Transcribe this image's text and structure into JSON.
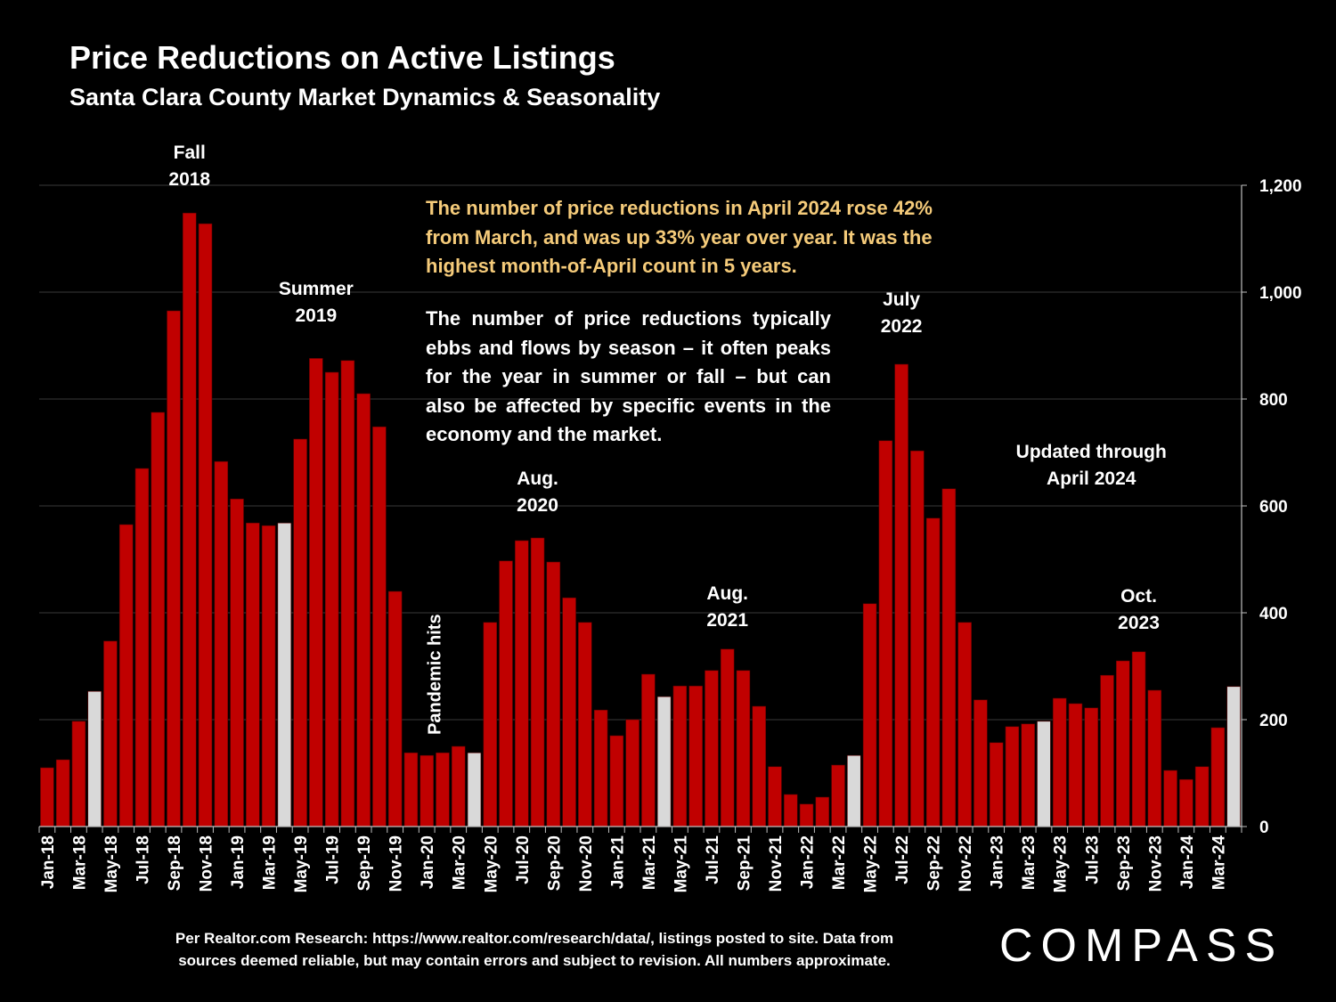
{
  "title": "Price Reductions on Active Listings",
  "subtitle": "Santa Clara County Market Dynamics & Seasonality",
  "notes": {
    "highlight": "The number of price reductions in April 2024 rose 42% from March, and was up 33% year over year. It was the highest month-of-April count in 5 years.",
    "body": "The number of price reductions typically ebbs and flows by season – it often peaks for the year in summer or fall – but can also be affected by specific events in the economy and the market."
  },
  "footer": {
    "line1": "Per Realtor.com Research:  https://www.realtor.com/research/data/, listings posted to site. Data from",
    "line2": "sources deemed reliable, but may contain errors and subject to revision. All numbers approximate."
  },
  "logo": "COMPASS",
  "colors": {
    "bar": "#c00000",
    "april_bar": "#d9d9d9",
    "highlight_text": "#f5cb7a",
    "background": "#000000"
  },
  "chart_data": {
    "type": "bar",
    "ylim": [
      0,
      1200
    ],
    "yticks": [
      "0",
      "200",
      "400",
      "600",
      "800",
      "1,000",
      "1,200"
    ],
    "ytick_values": [
      0,
      200,
      400,
      600,
      800,
      1000,
      1200
    ],
    "y_axis_side": "right",
    "categories": [
      "Jan-18",
      "Feb-18",
      "Mar-18",
      "Apr-18",
      "May-18",
      "Jun-18",
      "Jul-18",
      "Aug-18",
      "Sep-18",
      "Oct-18",
      "Nov-18",
      "Dec-18",
      "Jan-19",
      "Feb-19",
      "Mar-19",
      "Apr-19",
      "May-19",
      "Jun-19",
      "Jul-19",
      "Aug-19",
      "Sep-19",
      "Oct-19",
      "Nov-19",
      "Dec-19",
      "Jan-20",
      "Feb-20",
      "Mar-20",
      "Apr-20",
      "May-20",
      "Jun-20",
      "Jul-20",
      "Aug-20",
      "Sep-20",
      "Oct-20",
      "Nov-20",
      "Dec-20",
      "Jan-21",
      "Feb-21",
      "Mar-21",
      "Apr-21",
      "May-21",
      "Jun-21",
      "Jul-21",
      "Aug-21",
      "Sep-21",
      "Oct-21",
      "Nov-21",
      "Dec-21",
      "Jan-22",
      "Feb-22",
      "Mar-22",
      "Apr-22",
      "May-22",
      "Jun-22",
      "Jul-22",
      "Aug-22",
      "Sep-22",
      "Oct-22",
      "Nov-22",
      "Dec-22",
      "Jan-23",
      "Feb-23",
      "Mar-23",
      "Apr-23",
      "May-23",
      "Jun-23",
      "Jul-23",
      "Aug-23",
      "Sep-23",
      "Oct-23",
      "Nov-23",
      "Dec-23",
      "Jan-24",
      "Feb-24",
      "Mar-24",
      "Apr-24"
    ],
    "values": [
      110,
      125,
      197,
      253,
      347,
      565,
      670,
      775,
      965,
      1148,
      1128,
      683,
      613,
      568,
      563,
      568,
      725,
      876,
      850,
      872,
      810,
      748,
      440,
      138,
      133,
      138,
      150,
      138,
      382,
      497,
      535,
      540,
      495,
      428,
      382,
      218,
      170,
      200,
      285,
      243,
      263,
      263,
      292,
      332,
      292,
      225,
      112,
      60,
      42,
      55,
      115,
      133,
      417,
      722,
      865,
      703,
      577,
      632,
      382,
      237,
      157,
      187,
      192,
      197,
      240,
      230,
      222,
      283,
      310,
      327,
      255,
      105,
      88,
      112,
      185,
      262
    ],
    "highlighted": [
      "Apr-18",
      "Apr-19",
      "Apr-20",
      "Apr-21",
      "Apr-22",
      "Apr-23",
      "Apr-24"
    ],
    "xtick_labels": [
      "Jan-18",
      "Mar-18",
      "May-18",
      "Jul-18",
      "Sep-18",
      "Nov-18",
      "Jan-19",
      "Mar-19",
      "May-19",
      "Jul-19",
      "Sep-19",
      "Nov-19",
      "Jan-20",
      "Mar-20",
      "May-20",
      "Jul-20",
      "Sep-20",
      "Nov-20",
      "Jan-21",
      "Mar-21",
      "May-21",
      "Jul-21",
      "Sep-21",
      "Nov-21",
      "Jan-22",
      "Mar-22",
      "May-22",
      "Jul-22",
      "Sep-22",
      "Nov-22",
      "Jan-23",
      "Mar-23",
      "May-23",
      "Jul-23",
      "Sep-23",
      "Nov-23",
      "Jan-24",
      "Mar-24"
    ],
    "annotations": [
      {
        "lines": [
          "Fall",
          "2018"
        ],
        "category": "Oct-18",
        "value": 1200
      },
      {
        "lines": [
          "Summer",
          "2019"
        ],
        "category": "Jun-19",
        "value": 945
      },
      {
        "lines": [
          "Pandemic hits"
        ],
        "category": "Mar-20",
        "value": 230,
        "rotated": true
      },
      {
        "lines": [
          "Aug.",
          "2020"
        ],
        "category": "Aug-20",
        "value": 590
      },
      {
        "lines": [
          "Aug.",
          "2021"
        ],
        "category": "Aug-21",
        "value": 375
      },
      {
        "lines": [
          "July",
          "2022"
        ],
        "category": "Jul-22",
        "value": 925
      },
      {
        "lines": [
          "Updated through",
          "April 2024"
        ],
        "category": "Jul-23",
        "value": 640
      },
      {
        "lines": [
          "Oct.",
          "2023"
        ],
        "category": "Oct-23",
        "value": 370
      }
    ]
  }
}
